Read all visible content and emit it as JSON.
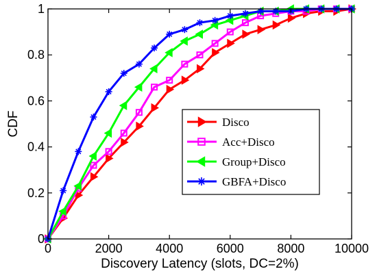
{
  "chart_data": {
    "type": "line",
    "title": "",
    "xlabel": "Discovery Latency (slots, DC=2%)",
    "ylabel": "CDF",
    "xlim": [
      0,
      10000
    ],
    "ylim": [
      0,
      1
    ],
    "xticks": [
      0,
      2000,
      4000,
      6000,
      8000,
      10000
    ],
    "yticks": [
      0,
      0.2,
      0.4,
      0.6,
      0.8,
      1
    ],
    "xtick_labels": [
      "0",
      "2000",
      "4000",
      "6000",
      "8000",
      "10000"
    ],
    "ytick_labels": [
      "0",
      "0.2",
      "0.4",
      "0.6",
      "0.8",
      "1"
    ],
    "grid": false,
    "legend_position": "center-right",
    "x": [
      0,
      500,
      1000,
      1500,
      2000,
      2500,
      3000,
      3500,
      4000,
      4500,
      5000,
      5500,
      6000,
      6500,
      7000,
      7500,
      8000,
      8500,
      9000,
      9500,
      10000
    ],
    "series": [
      {
        "name": "Disco",
        "color": "#ff0000",
        "marker": "triangle-right",
        "values": [
          0,
          0.09,
          0.19,
          0.27,
          0.35,
          0.42,
          0.49,
          0.57,
          0.65,
          0.69,
          0.74,
          0.81,
          0.85,
          0.89,
          0.91,
          0.93,
          0.96,
          0.98,
          0.99,
          0.99,
          1.0
        ]
      },
      {
        "name": "Acc+Disco",
        "color": "#ff00ff",
        "marker": "square",
        "values": [
          0,
          0.1,
          0.22,
          0.32,
          0.38,
          0.46,
          0.55,
          0.66,
          0.69,
          0.76,
          0.8,
          0.85,
          0.9,
          0.94,
          0.97,
          0.98,
          0.99,
          0.99,
          1.0,
          1.0,
          1.0
        ]
      },
      {
        "name": "Group+Disco",
        "color": "#00ff00",
        "marker": "triangle-left",
        "values": [
          0,
          0.12,
          0.23,
          0.36,
          0.46,
          0.58,
          0.66,
          0.74,
          0.81,
          0.86,
          0.89,
          0.93,
          0.95,
          0.97,
          0.99,
          0.99,
          1.0,
          1.0,
          1.0,
          1.0,
          1.0
        ]
      },
      {
        "name": "GBFA+Disco",
        "color": "#0000ff",
        "marker": "star",
        "values": [
          0,
          0.21,
          0.38,
          0.53,
          0.64,
          0.72,
          0.76,
          0.83,
          0.89,
          0.91,
          0.94,
          0.95,
          0.97,
          0.98,
          0.99,
          0.99,
          0.99,
          1.0,
          1.0,
          1.0,
          1.0
        ]
      }
    ]
  }
}
